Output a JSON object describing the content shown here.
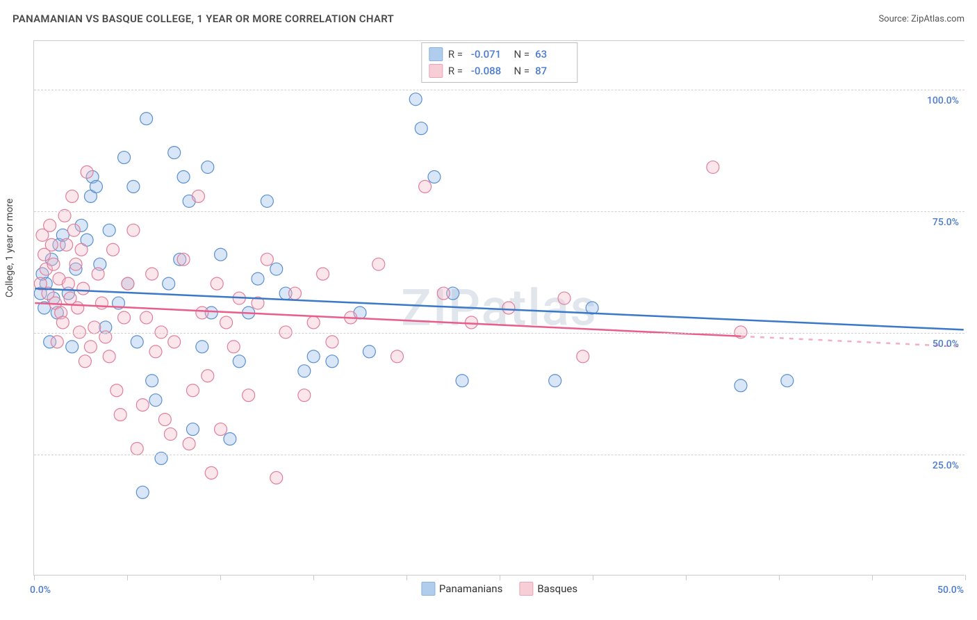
{
  "header": {
    "title": "PANAMANIAN VS BASQUE COLLEGE, 1 YEAR OR MORE CORRELATION CHART",
    "source_label": "Source:",
    "source_name": "ZipAtlas.com"
  },
  "watermark": "ZIPatlas",
  "chart": {
    "type": "scatter",
    "y_axis_title": "College, 1 year or more",
    "background_color": "#ffffff",
    "grid_color": "#d0d0d0",
    "axis_color": "#cccccc",
    "tick_label_color": "#4a7bd0",
    "tick_label_fontsize": 14,
    "marker_radius": 9,
    "marker_fill_opacity": 0.35,
    "marker_stroke_width": 1.2,
    "trend_line_width": 2.5,
    "xlim": [
      0,
      50
    ],
    "ylim": [
      0,
      110
    ],
    "x_ticks": [
      0,
      5,
      10,
      15,
      20,
      25,
      30,
      35,
      40,
      45,
      50
    ],
    "x_tick_labels": {
      "0": "0.0%",
      "50": "50.0%"
    },
    "y_gridlines": [
      25,
      50,
      75,
      100
    ],
    "y_tick_labels": {
      "25": "25.0%",
      "50": "50.0%",
      "75": "75.0%",
      "100": "100.0%"
    },
    "series": [
      {
        "key": "panamanians",
        "label": "Panamanians",
        "color": "#8fb8e8",
        "border": "#5a8fd0",
        "trend_color": "#3a78c8",
        "R": "-0.071",
        "N": "63",
        "trend": {
          "x1": 0,
          "y1": 59,
          "x2": 50,
          "y2": 50.5
        },
        "trend_dash_from_x": null,
        "points": [
          [
            0.3,
            58
          ],
          [
            0.4,
            62
          ],
          [
            0.5,
            55
          ],
          [
            0.6,
            60
          ],
          [
            0.8,
            48
          ],
          [
            0.9,
            65
          ],
          [
            1.0,
            57
          ],
          [
            1.2,
            54
          ],
          [
            1.3,
            68
          ],
          [
            1.5,
            70
          ],
          [
            1.8,
            58
          ],
          [
            2.0,
            47
          ],
          [
            2.2,
            63
          ],
          [
            2.5,
            72
          ],
          [
            2.8,
            69
          ],
          [
            3.0,
            78
          ],
          [
            3.1,
            82
          ],
          [
            3.3,
            80
          ],
          [
            3.5,
            64
          ],
          [
            3.8,
            51
          ],
          [
            4.0,
            71
          ],
          [
            4.5,
            56
          ],
          [
            4.8,
            86
          ],
          [
            5.0,
            60
          ],
          [
            5.3,
            80
          ],
          [
            5.5,
            48
          ],
          [
            5.8,
            17
          ],
          [
            6.0,
            94
          ],
          [
            6.3,
            40
          ],
          [
            6.5,
            36
          ],
          [
            6.8,
            24
          ],
          [
            7.2,
            60
          ],
          [
            7.5,
            87
          ],
          [
            7.8,
            65
          ],
          [
            8.0,
            82
          ],
          [
            8.3,
            77
          ],
          [
            8.5,
            30
          ],
          [
            9.0,
            47
          ],
          [
            9.3,
            84
          ],
          [
            9.5,
            54
          ],
          [
            10.0,
            66
          ],
          [
            10.5,
            28
          ],
          [
            11.0,
            44
          ],
          [
            11.5,
            54
          ],
          [
            12.0,
            61
          ],
          [
            12.5,
            77
          ],
          [
            13.0,
            63
          ],
          [
            13.5,
            58
          ],
          [
            14.5,
            42
          ],
          [
            15.0,
            45
          ],
          [
            16.0,
            44
          ],
          [
            17.5,
            54
          ],
          [
            18.0,
            46
          ],
          [
            20.5,
            98
          ],
          [
            20.8,
            92
          ],
          [
            21.5,
            82
          ],
          [
            22.5,
            58
          ],
          [
            23.0,
            40
          ],
          [
            28.0,
            40
          ],
          [
            30.0,
            55
          ],
          [
            38.0,
            39
          ],
          [
            40.5,
            40
          ]
        ]
      },
      {
        "key": "basques",
        "label": "Basques",
        "color": "#f4b8c6",
        "border": "#e07e9b",
        "trend_color": "#e85d8a",
        "R": "-0.088",
        "N": "87",
        "trend": {
          "x1": 0,
          "y1": 56,
          "x2": 50,
          "y2": 47
        },
        "trend_dash_from_x": 38,
        "points": [
          [
            0.3,
            60
          ],
          [
            0.4,
            70
          ],
          [
            0.5,
            66
          ],
          [
            0.6,
            63
          ],
          [
            0.7,
            58
          ],
          [
            0.8,
            72
          ],
          [
            0.9,
            68
          ],
          [
            1.0,
            64
          ],
          [
            1.1,
            56
          ],
          [
            1.2,
            48
          ],
          [
            1.3,
            61
          ],
          [
            1.4,
            54
          ],
          [
            1.5,
            52
          ],
          [
            1.6,
            74
          ],
          [
            1.7,
            68
          ],
          [
            1.8,
            60
          ],
          [
            1.9,
            57
          ],
          [
            2.0,
            78
          ],
          [
            2.1,
            71
          ],
          [
            2.2,
            64
          ],
          [
            2.3,
            55
          ],
          [
            2.4,
            50
          ],
          [
            2.5,
            67
          ],
          [
            2.6,
            59
          ],
          [
            2.7,
            44
          ],
          [
            2.8,
            83
          ],
          [
            3.0,
            47
          ],
          [
            3.2,
            51
          ],
          [
            3.4,
            62
          ],
          [
            3.6,
            56
          ],
          [
            3.8,
            49
          ],
          [
            4.0,
            45
          ],
          [
            4.2,
            67
          ],
          [
            4.4,
            38
          ],
          [
            4.6,
            33
          ],
          [
            4.8,
            53
          ],
          [
            5.0,
            60
          ],
          [
            5.3,
            71
          ],
          [
            5.5,
            26
          ],
          [
            5.8,
            35
          ],
          [
            6.0,
            53
          ],
          [
            6.3,
            62
          ],
          [
            6.5,
            46
          ],
          [
            6.8,
            50
          ],
          [
            7.0,
            32
          ],
          [
            7.3,
            29
          ],
          [
            7.5,
            48
          ],
          [
            8.0,
            65
          ],
          [
            8.3,
            27
          ],
          [
            8.5,
            38
          ],
          [
            8.8,
            78
          ],
          [
            9.0,
            54
          ],
          [
            9.3,
            41
          ],
          [
            9.5,
            21
          ],
          [
            9.8,
            60
          ],
          [
            10.0,
            30
          ],
          [
            10.3,
            52
          ],
          [
            10.7,
            47
          ],
          [
            11.0,
            57
          ],
          [
            11.5,
            37
          ],
          [
            12.0,
            56
          ],
          [
            12.5,
            65
          ],
          [
            13.0,
            20
          ],
          [
            13.5,
            50
          ],
          [
            14.0,
            58
          ],
          [
            14.5,
            37
          ],
          [
            15.0,
            52
          ],
          [
            15.5,
            62
          ],
          [
            16.0,
            48
          ],
          [
            17.0,
            53
          ],
          [
            18.5,
            64
          ],
          [
            19.5,
            45
          ],
          [
            21.0,
            80
          ],
          [
            22.0,
            58
          ],
          [
            23.5,
            52
          ],
          [
            25.5,
            55
          ],
          [
            28.5,
            57
          ],
          [
            29.5,
            45
          ],
          [
            36.5,
            84
          ],
          [
            38.0,
            50
          ]
        ]
      }
    ]
  }
}
